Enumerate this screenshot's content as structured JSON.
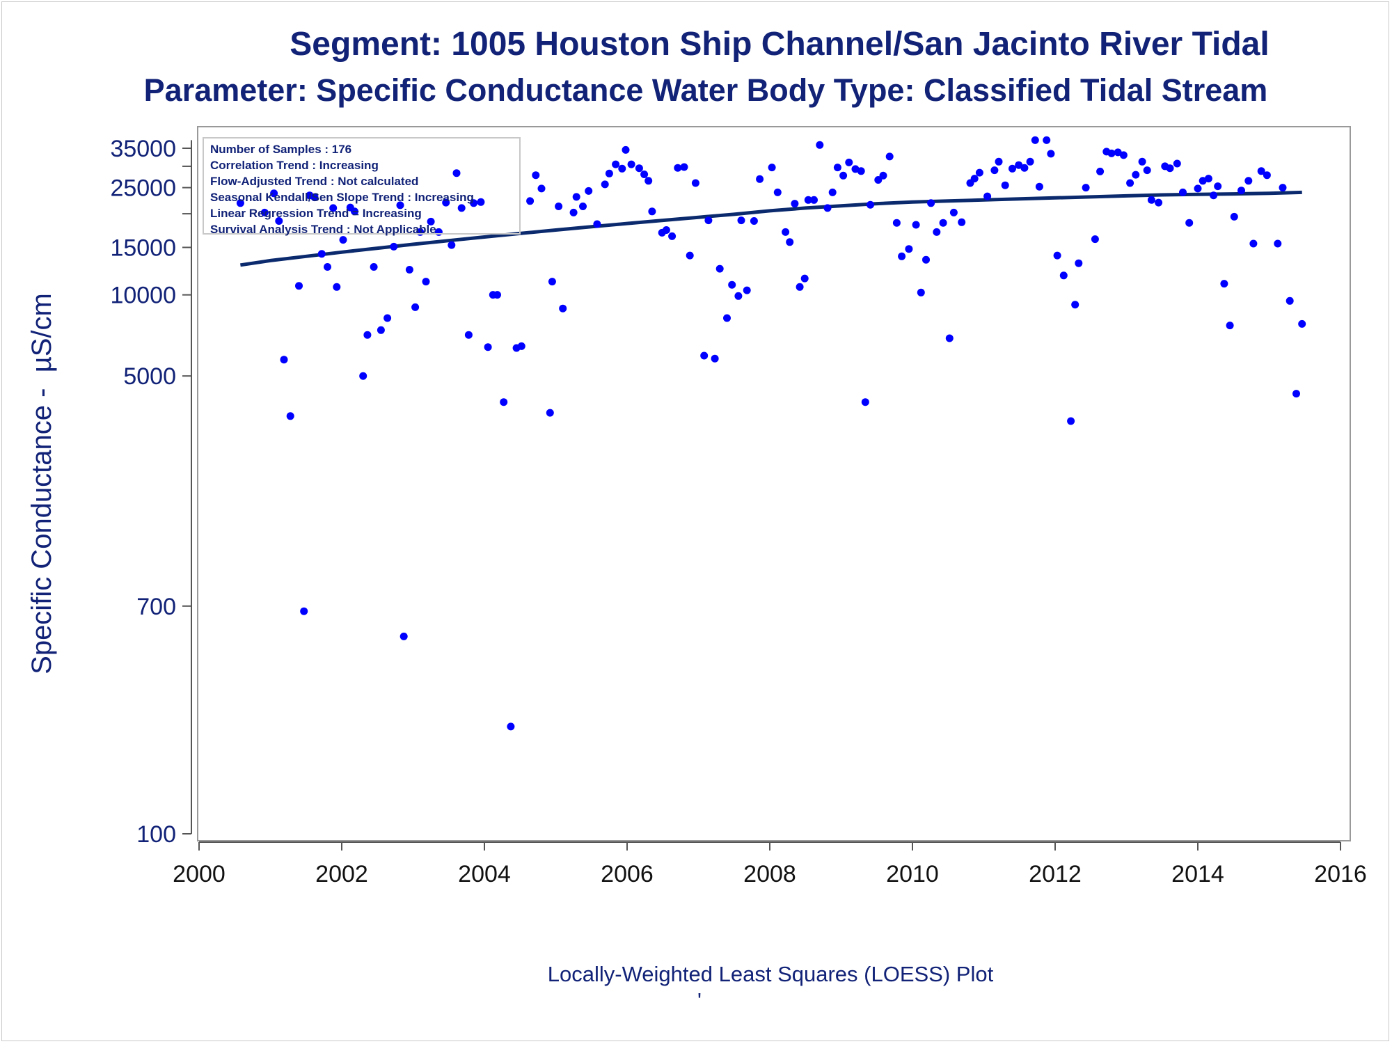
{
  "title": "Segment: 1005  Houston Ship Channel/San Jacinto River Tidal",
  "subtitle": "Parameter: Specific Conductance   Water Body Type: Classified Tidal Stream",
  "inset": [
    "Number of Samples : 176",
    "Correlation Trend : Increasing",
    "Flow-Adjusted Trend : Not calculated",
    "Seasonal Kendall/Sen Slope Trend : Increasing",
    "Linear Regression Trend = Increasing",
    "Survival Analysis Trend : Not Applicable"
  ],
  "footer": "Locally-Weighted Least Squares (LOESS) Plot",
  "footer_mark": "'",
  "colors": {
    "text": "#112277",
    "points": "#0000ff",
    "loess": "#0b2a6e",
    "frame": "#999999"
  },
  "chart_data": {
    "type": "scatter",
    "title": "Segment: 1005  Houston Ship Channel/San Jacinto River Tidal",
    "subtitle": "Parameter: Specific Conductance   Water Body Type: Classified Tidal Stream",
    "xlabel": "",
    "ylabel": "Specific Conductance -  µS/cm",
    "y_scale": "log",
    "xlim": [
      2000,
      2016
    ],
    "ylim": [
      100,
      37000
    ],
    "x_ticks": [
      "2000",
      "2002",
      "2004",
      "2006",
      "2008",
      "2010",
      "2012",
      "2014",
      "2016"
    ],
    "y_ticks": [
      "100",
      "700",
      "5000",
      "10000",
      "15000",
      "25000",
      "35000"
    ],
    "y_minor_ticks": [
      20000,
      30000
    ],
    "grid": false,
    "points": [
      [
        2000.58,
        21900
      ],
      [
        2000.92,
        20200
      ],
      [
        2001.05,
        23800
      ],
      [
        2001.12,
        18800
      ],
      [
        2001.19,
        5750
      ],
      [
        2001.28,
        3550
      ],
      [
        2001.4,
        10800
      ],
      [
        2001.47,
        670
      ],
      [
        2001.55,
        23400
      ],
      [
        2001.62,
        23000
      ],
      [
        2001.72,
        14200
      ],
      [
        2001.8,
        12700
      ],
      [
        2001.88,
        21000
      ],
      [
        2001.93,
        10700
      ],
      [
        2002.02,
        16000
      ],
      [
        2002.12,
        21100
      ],
      [
        2002.18,
        20400
      ],
      [
        2002.3,
        5000
      ],
      [
        2002.36,
        7100
      ],
      [
        2002.45,
        12700
      ],
      [
        2002.55,
        7400
      ],
      [
        2002.64,
        8200
      ],
      [
        2002.73,
        15100
      ],
      [
        2002.82,
        21500
      ],
      [
        2002.87,
        540
      ],
      [
        2002.95,
        12400
      ],
      [
        2003.03,
        9000
      ],
      [
        2003.1,
        17100
      ],
      [
        2003.18,
        11200
      ],
      [
        2003.25,
        18700
      ],
      [
        2003.36,
        17100
      ],
      [
        2003.46,
        22000
      ],
      [
        2003.54,
        15300
      ],
      [
        2003.61,
        28300
      ],
      [
        2003.68,
        21000
      ],
      [
        2003.78,
        7100
      ],
      [
        2003.85,
        21900
      ],
      [
        2003.95,
        22100
      ],
      [
        2004.05,
        6400
      ],
      [
        2004.12,
        10000
      ],
      [
        2004.18,
        10000
      ],
      [
        2004.27,
        4000
      ],
      [
        2004.37,
        250
      ],
      [
        2004.45,
        6350
      ],
      [
        2004.52,
        6450
      ],
      [
        2004.64,
        22300
      ],
      [
        2004.72,
        27800
      ],
      [
        2004.8,
        24800
      ],
      [
        2004.92,
        3650
      ],
      [
        2004.95,
        11200
      ],
      [
        2005.04,
        21300
      ],
      [
        2005.1,
        8900
      ],
      [
        2005.25,
        20200
      ],
      [
        2005.29,
        23100
      ],
      [
        2005.38,
        21300
      ],
      [
        2005.46,
        24300
      ],
      [
        2005.58,
        18300
      ],
      [
        2005.69,
        25700
      ],
      [
        2005.75,
        28200
      ],
      [
        2005.84,
        30500
      ],
      [
        2005.93,
        29400
      ],
      [
        2005.98,
        34500
      ],
      [
        2006.06,
        30500
      ],
      [
        2006.17,
        29500
      ],
      [
        2006.24,
        28000
      ],
      [
        2006.3,
        26500
      ],
      [
        2006.35,
        20400
      ],
      [
        2006.49,
        17000
      ],
      [
        2006.55,
        17400
      ],
      [
        2006.63,
        16500
      ],
      [
        2006.71,
        29600
      ],
      [
        2006.8,
        29800
      ],
      [
        2006.88,
        14000
      ],
      [
        2006.96,
        26000
      ],
      [
        2007.08,
        5950
      ],
      [
        2007.14,
        18900
      ],
      [
        2007.23,
        5800
      ],
      [
        2007.3,
        12500
      ],
      [
        2007.4,
        8200
      ],
      [
        2007.47,
        10900
      ],
      [
        2007.56,
        9900
      ],
      [
        2007.6,
        18900
      ],
      [
        2007.68,
        10400
      ],
      [
        2007.78,
        18800
      ],
      [
        2007.86,
        26900
      ],
      [
        2008.03,
        29700
      ],
      [
        2008.11,
        24000
      ],
      [
        2008.22,
        17100
      ],
      [
        2008.28,
        15700
      ],
      [
        2008.35,
        21800
      ],
      [
        2008.42,
        10700
      ],
      [
        2008.49,
        11500
      ],
      [
        2008.54,
        22500
      ],
      [
        2008.62,
        22500
      ],
      [
        2008.7,
        36000
      ],
      [
        2008.81,
        21000
      ],
      [
        2008.88,
        24000
      ],
      [
        2008.95,
        29700
      ],
      [
        2009.03,
        27700
      ],
      [
        2009.11,
        31000
      ],
      [
        2009.2,
        29300
      ],
      [
        2009.28,
        28800
      ],
      [
        2009.34,
        4000
      ],
      [
        2009.41,
        21600
      ],
      [
        2009.52,
        26700
      ],
      [
        2009.59,
        27700
      ],
      [
        2009.68,
        32600
      ],
      [
        2009.78,
        18500
      ],
      [
        2009.85,
        13900
      ],
      [
        2009.95,
        14800
      ],
      [
        2010.05,
        18200
      ],
      [
        2010.12,
        10200
      ],
      [
        2010.19,
        13500
      ],
      [
        2010.26,
        21900
      ],
      [
        2010.34,
        17100
      ],
      [
        2010.43,
        18500
      ],
      [
        2010.52,
        6900
      ],
      [
        2010.58,
        20200
      ],
      [
        2010.69,
        18600
      ],
      [
        2010.81,
        26000
      ],
      [
        2010.87,
        27000
      ],
      [
        2010.94,
        28400
      ],
      [
        2011.05,
        23200
      ],
      [
        2011.15,
        29000
      ],
      [
        2011.21,
        31200
      ],
      [
        2011.3,
        25500
      ],
      [
        2011.4,
        29400
      ],
      [
        2011.49,
        30300
      ],
      [
        2011.57,
        29600
      ],
      [
        2011.65,
        31200
      ],
      [
        2011.72,
        37500
      ],
      [
        2011.78,
        25200
      ],
      [
        2011.88,
        37500
      ],
      [
        2011.94,
        33400
      ],
      [
        2012.03,
        14000
      ],
      [
        2012.12,
        11800
      ],
      [
        2012.22,
        3400
      ],
      [
        2012.28,
        9200
      ],
      [
        2012.33,
        13100
      ],
      [
        2012.43,
        25000
      ],
      [
        2012.56,
        16100
      ],
      [
        2012.63,
        28700
      ],
      [
        2012.72,
        34000
      ],
      [
        2012.79,
        33500
      ],
      [
        2012.88,
        33800
      ],
      [
        2012.96,
        33000
      ],
      [
        2013.05,
        26000
      ],
      [
        2013.13,
        27900
      ],
      [
        2013.22,
        31200
      ],
      [
        2013.29,
        29000
      ],
      [
        2013.35,
        22500
      ],
      [
        2013.45,
        22000
      ],
      [
        2013.54,
        30000
      ],
      [
        2013.61,
        29500
      ],
      [
        2013.71,
        30700
      ],
      [
        2013.79,
        24000
      ],
      [
        2013.88,
        18500
      ],
      [
        2014.0,
        24800
      ],
      [
        2014.07,
        26500
      ],
      [
        2014.15,
        27000
      ],
      [
        2014.22,
        23400
      ],
      [
        2014.28,
        25300
      ],
      [
        2014.37,
        11000
      ],
      [
        2014.45,
        7700
      ],
      [
        2014.51,
        19500
      ],
      [
        2014.61,
        24400
      ],
      [
        2014.71,
        26500
      ],
      [
        2014.78,
        15500
      ],
      [
        2014.89,
        28800
      ],
      [
        2014.97,
        27800
      ],
      [
        2015.12,
        15500
      ],
      [
        2015.19,
        25000
      ],
      [
        2015.29,
        9500
      ],
      [
        2015.38,
        4300
      ],
      [
        2015.46,
        7800
      ]
    ],
    "loess": {
      "name": "LOESS",
      "x": [
        2000.58,
        2001.0,
        2001.5,
        2002.0,
        2002.5,
        2003.0,
        2003.5,
        2004.0,
        2004.5,
        2005.0,
        2005.5,
        2006.0,
        2006.5,
        2007.0,
        2007.5,
        2008.0,
        2008.5,
        2009.0,
        2009.5,
        2010.0,
        2010.5,
        2011.0,
        2011.5,
        2012.0,
        2012.5,
        2013.0,
        2013.5,
        2014.0,
        2014.5,
        2015.0,
        2015.46
      ],
      "y": [
        12900,
        13400,
        13900,
        14400,
        14900,
        15400,
        15900,
        16400,
        16900,
        17400,
        17900,
        18400,
        18900,
        19400,
        19900,
        20500,
        21000,
        21400,
        21800,
        22100,
        22300,
        22500,
        22700,
        22900,
        23100,
        23300,
        23500,
        23600,
        23700,
        23800,
        24000
      ]
    }
  }
}
